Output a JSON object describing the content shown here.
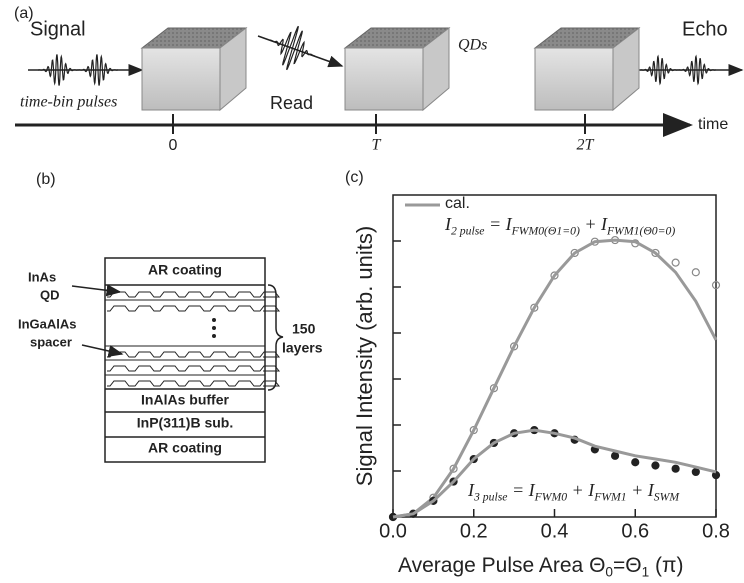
{
  "panel_a": {
    "label": "(a)",
    "signal": "Signal",
    "pulses": "time-bin pulses",
    "read": "Read",
    "qds": "QDs",
    "echo": "Echo",
    "time": "time",
    "ticks": [
      "0",
      "T",
      "2T"
    ]
  },
  "panel_b": {
    "label": "(b)",
    "layers": [
      "AR coating",
      "InAlAs buffer",
      "InP(311)B sub.",
      "AR coating"
    ],
    "qd": [
      "InAs",
      "QD"
    ],
    "spacer": [
      "InGaAlAs",
      "spacer"
    ],
    "count": [
      "150",
      "layers"
    ]
  },
  "chart_data": {
    "type": "line",
    "label": "(c)",
    "y_label": "Signal Intensity (arb. units)",
    "x_label": [
      "Average Pulse Area Θ",
      "0",
      "=Θ",
      "1",
      " (π)"
    ],
    "legend": "cal.",
    "equation_2pulse": [
      "I",
      "2 pulse",
      " = I",
      "FWM0(Θ1=0)",
      " + I",
      "FWM1(Θ0=0)"
    ],
    "equation_3pulse": [
      "I",
      "3 pulse",
      " = I",
      "FWM0",
      " + I",
      "FWM1",
      " + I",
      "SWM"
    ],
    "x": [
      0,
      0.05,
      0.1,
      0.15,
      0.2,
      0.25,
      0.3,
      0.35,
      0.4,
      0.45,
      0.5,
      0.55,
      0.6,
      0.65,
      0.7,
      0.75,
      0.8
    ],
    "series": [
      {
        "marker": "open-circle",
        "color": "#888888",
        "values": [
          0,
          0.01,
          0.06,
          0.15,
          0.27,
          0.4,
          0.53,
          0.65,
          0.75,
          0.82,
          0.855,
          0.86,
          0.85,
          0.82,
          0.79,
          0.76,
          0.72
        ]
      },
      {
        "marker": "line",
        "color": "#999999",
        "values": [
          0,
          0.01,
          0.06,
          0.15,
          0.27,
          0.4,
          0.53,
          0.65,
          0.75,
          0.82,
          0.855,
          0.86,
          0.855,
          0.82,
          0.76,
          0.67,
          0.55
        ]
      },
      {
        "marker": "filled-circle",
        "color": "#222222",
        "values": [
          0,
          0.01,
          0.05,
          0.11,
          0.18,
          0.23,
          0.26,
          0.27,
          0.26,
          0.24,
          0.21,
          0.19,
          0.17,
          0.16,
          0.15,
          0.14,
          0.13
        ]
      },
      {
        "marker": "line",
        "color": "#999999",
        "values": [
          0,
          0.01,
          0.05,
          0.11,
          0.18,
          0.23,
          0.26,
          0.27,
          0.26,
          0.245,
          0.22,
          0.205,
          0.19,
          0.18,
          0.17,
          0.155,
          0.14
        ]
      }
    ],
    "xlim": [
      0,
      0.8
    ],
    "ylim": [
      0,
      1
    ],
    "xticks": [
      {
        "value": 0,
        "label": "0.0"
      },
      0.2,
      0.4,
      0.6,
      0.8
    ]
  }
}
